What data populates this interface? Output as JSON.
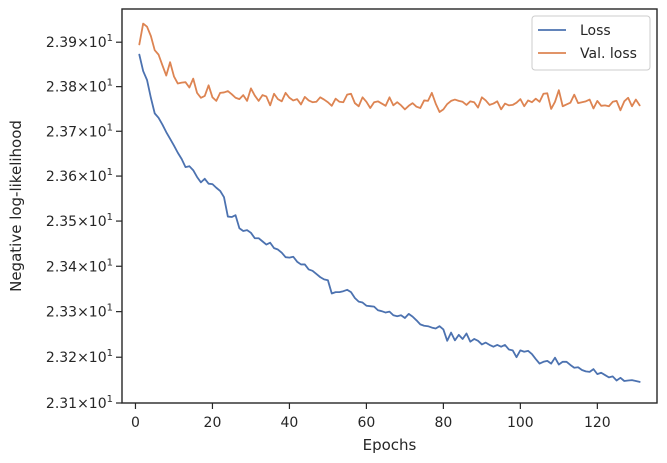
{
  "chart_data": {
    "type": "line",
    "xlabel": "Epochs",
    "ylabel": "Negative log-likelihood",
    "xlim": [
      -3.5,
      135.5
    ],
    "ylim": [
      23.1,
      23.975
    ],
    "yscale": "log",
    "xticks": [
      0,
      20,
      40,
      60,
      80,
      100,
      120
    ],
    "yticks": [
      23.1,
      23.2,
      23.3,
      23.4,
      23.5,
      23.6,
      23.7,
      23.8,
      23.9
    ],
    "ytick_mantissas": [
      "2.31",
      "2.32",
      "2.33",
      "2.34",
      "2.35",
      "2.36",
      "2.37",
      "2.38",
      "2.39"
    ],
    "ytick_base": "10",
    "ytick_exponent": "1",
    "grid": false,
    "legend_position": "top-right",
    "colors": {
      "Loss": "#4c72b0",
      "Val. loss": "#dd8452"
    },
    "series": [
      {
        "name": "Loss",
        "x": [
          1,
          2,
          3,
          4,
          5,
          6,
          7,
          8,
          9,
          10,
          11,
          12,
          13,
          14,
          15,
          16,
          17,
          18,
          19,
          20,
          21,
          22,
          23,
          24,
          25,
          26,
          27,
          28,
          29,
          30,
          31,
          32,
          33,
          34,
          35,
          36,
          37,
          38,
          39,
          40,
          41,
          42,
          43,
          44,
          45,
          46,
          47,
          48,
          49,
          50,
          51,
          52,
          53,
          54,
          55,
          56,
          57,
          58,
          59,
          60,
          61,
          62,
          63,
          64,
          65,
          66,
          67,
          68,
          69,
          70,
          71,
          72,
          73,
          74,
          75,
          76,
          77,
          78,
          79,
          80,
          81,
          82,
          83,
          84,
          85,
          86,
          87,
          88,
          89,
          90,
          91,
          92,
          93,
          94,
          95,
          96,
          97,
          98,
          99,
          100,
          101,
          102,
          103,
          104,
          105,
          106,
          107,
          108,
          109,
          110,
          111,
          112,
          113,
          114,
          115,
          116,
          117,
          118,
          119,
          120,
          121,
          122,
          123,
          124,
          125,
          126,
          127,
          128,
          129,
          130,
          131
        ],
        "values": [
          23.872,
          23.835,
          23.815,
          23.775,
          23.74,
          23.73,
          23.715,
          23.698,
          23.683,
          23.668,
          23.652,
          23.638,
          23.62,
          23.622,
          23.613,
          23.598,
          23.586,
          23.594,
          23.583,
          23.582,
          23.574,
          23.567,
          23.553,
          23.51,
          23.509,
          23.513,
          23.484,
          23.478,
          23.48,
          23.474,
          23.462,
          23.462,
          23.455,
          23.448,
          23.452,
          23.44,
          23.437,
          23.43,
          23.42,
          23.419,
          23.421,
          23.41,
          23.404,
          23.404,
          23.393,
          23.39,
          23.383,
          23.376,
          23.371,
          23.369,
          23.34,
          23.343,
          23.343,
          23.345,
          23.348,
          23.343,
          23.33,
          23.322,
          23.32,
          23.313,
          23.312,
          23.311,
          23.303,
          23.301,
          23.298,
          23.3,
          23.292,
          23.29,
          23.292,
          23.286,
          23.295,
          23.289,
          23.281,
          23.272,
          23.269,
          23.268,
          23.265,
          23.263,
          23.268,
          23.261,
          23.236,
          23.254,
          23.237,
          23.249,
          23.24,
          23.252,
          23.234,
          23.24,
          23.236,
          23.228,
          23.232,
          23.227,
          23.223,
          23.227,
          23.223,
          23.227,
          23.217,
          23.215,
          23.2,
          23.215,
          23.212,
          23.214,
          23.207,
          23.196,
          23.186,
          23.19,
          23.192,
          23.186,
          23.199,
          23.184,
          23.19,
          23.19,
          23.183,
          23.177,
          23.178,
          23.172,
          23.169,
          23.168,
          23.174,
          23.163,
          23.166,
          23.161,
          23.156,
          23.158,
          23.149,
          23.155,
          23.148,
          23.149,
          23.15,
          23.148,
          23.146
        ]
      },
      {
        "name": "Val. loss",
        "x": [
          1,
          2,
          3,
          4,
          5,
          6,
          7,
          8,
          9,
          10,
          11,
          12,
          13,
          14,
          15,
          16,
          17,
          18,
          19,
          20,
          21,
          22,
          23,
          24,
          25,
          26,
          27,
          28,
          29,
          30,
          31,
          32,
          33,
          34,
          35,
          36,
          37,
          38,
          39,
          40,
          41,
          42,
          43,
          44,
          45,
          46,
          47,
          48,
          49,
          50,
          51,
          52,
          53,
          54,
          55,
          56,
          57,
          58,
          59,
          60,
          61,
          62,
          63,
          64,
          65,
          66,
          67,
          68,
          69,
          70,
          71,
          72,
          73,
          74,
          75,
          76,
          77,
          78,
          79,
          80,
          81,
          82,
          83,
          84,
          85,
          86,
          87,
          88,
          89,
          90,
          91,
          92,
          93,
          94,
          95,
          96,
          97,
          98,
          99,
          100,
          101,
          102,
          103,
          104,
          105,
          106,
          107,
          108,
          109,
          110,
          111,
          112,
          113,
          114,
          115,
          116,
          117,
          118,
          119,
          120,
          121,
          122,
          123,
          124,
          125,
          126,
          127,
          128,
          129,
          130,
          131
        ],
        "values": [
          23.895,
          23.942,
          23.935,
          23.914,
          23.882,
          23.872,
          23.848,
          23.825,
          23.855,
          23.823,
          23.807,
          23.809,
          23.81,
          23.798,
          23.818,
          23.786,
          23.775,
          23.779,
          23.803,
          23.776,
          23.768,
          23.786,
          23.787,
          23.79,
          23.783,
          23.775,
          23.772,
          23.781,
          23.768,
          23.796,
          23.78,
          23.768,
          23.781,
          23.778,
          23.758,
          23.784,
          23.772,
          23.767,
          23.786,
          23.775,
          23.769,
          23.772,
          23.76,
          23.777,
          23.769,
          23.765,
          23.766,
          23.776,
          23.771,
          23.765,
          23.757,
          23.773,
          23.766,
          23.765,
          23.782,
          23.784,
          23.763,
          23.756,
          23.776,
          23.766,
          23.752,
          23.765,
          23.767,
          23.762,
          23.757,
          23.776,
          23.758,
          23.765,
          23.758,
          23.749,
          23.757,
          23.763,
          23.755,
          23.752,
          23.769,
          23.768,
          23.786,
          23.762,
          23.743,
          23.749,
          23.761,
          23.768,
          23.771,
          23.768,
          23.766,
          23.759,
          23.767,
          23.765,
          23.753,
          23.776,
          23.769,
          23.759,
          23.762,
          23.767,
          23.749,
          23.762,
          23.758,
          23.759,
          23.764,
          23.772,
          23.756,
          23.769,
          23.765,
          23.773,
          23.766,
          23.784,
          23.785,
          23.75,
          23.766,
          23.792,
          23.756,
          23.76,
          23.764,
          23.782,
          23.763,
          23.765,
          23.767,
          23.771,
          23.751,
          23.768,
          23.757,
          23.758,
          23.756,
          23.766,
          23.768,
          23.747,
          23.767,
          23.775,
          23.756,
          23.771,
          23.758
        ]
      }
    ]
  }
}
